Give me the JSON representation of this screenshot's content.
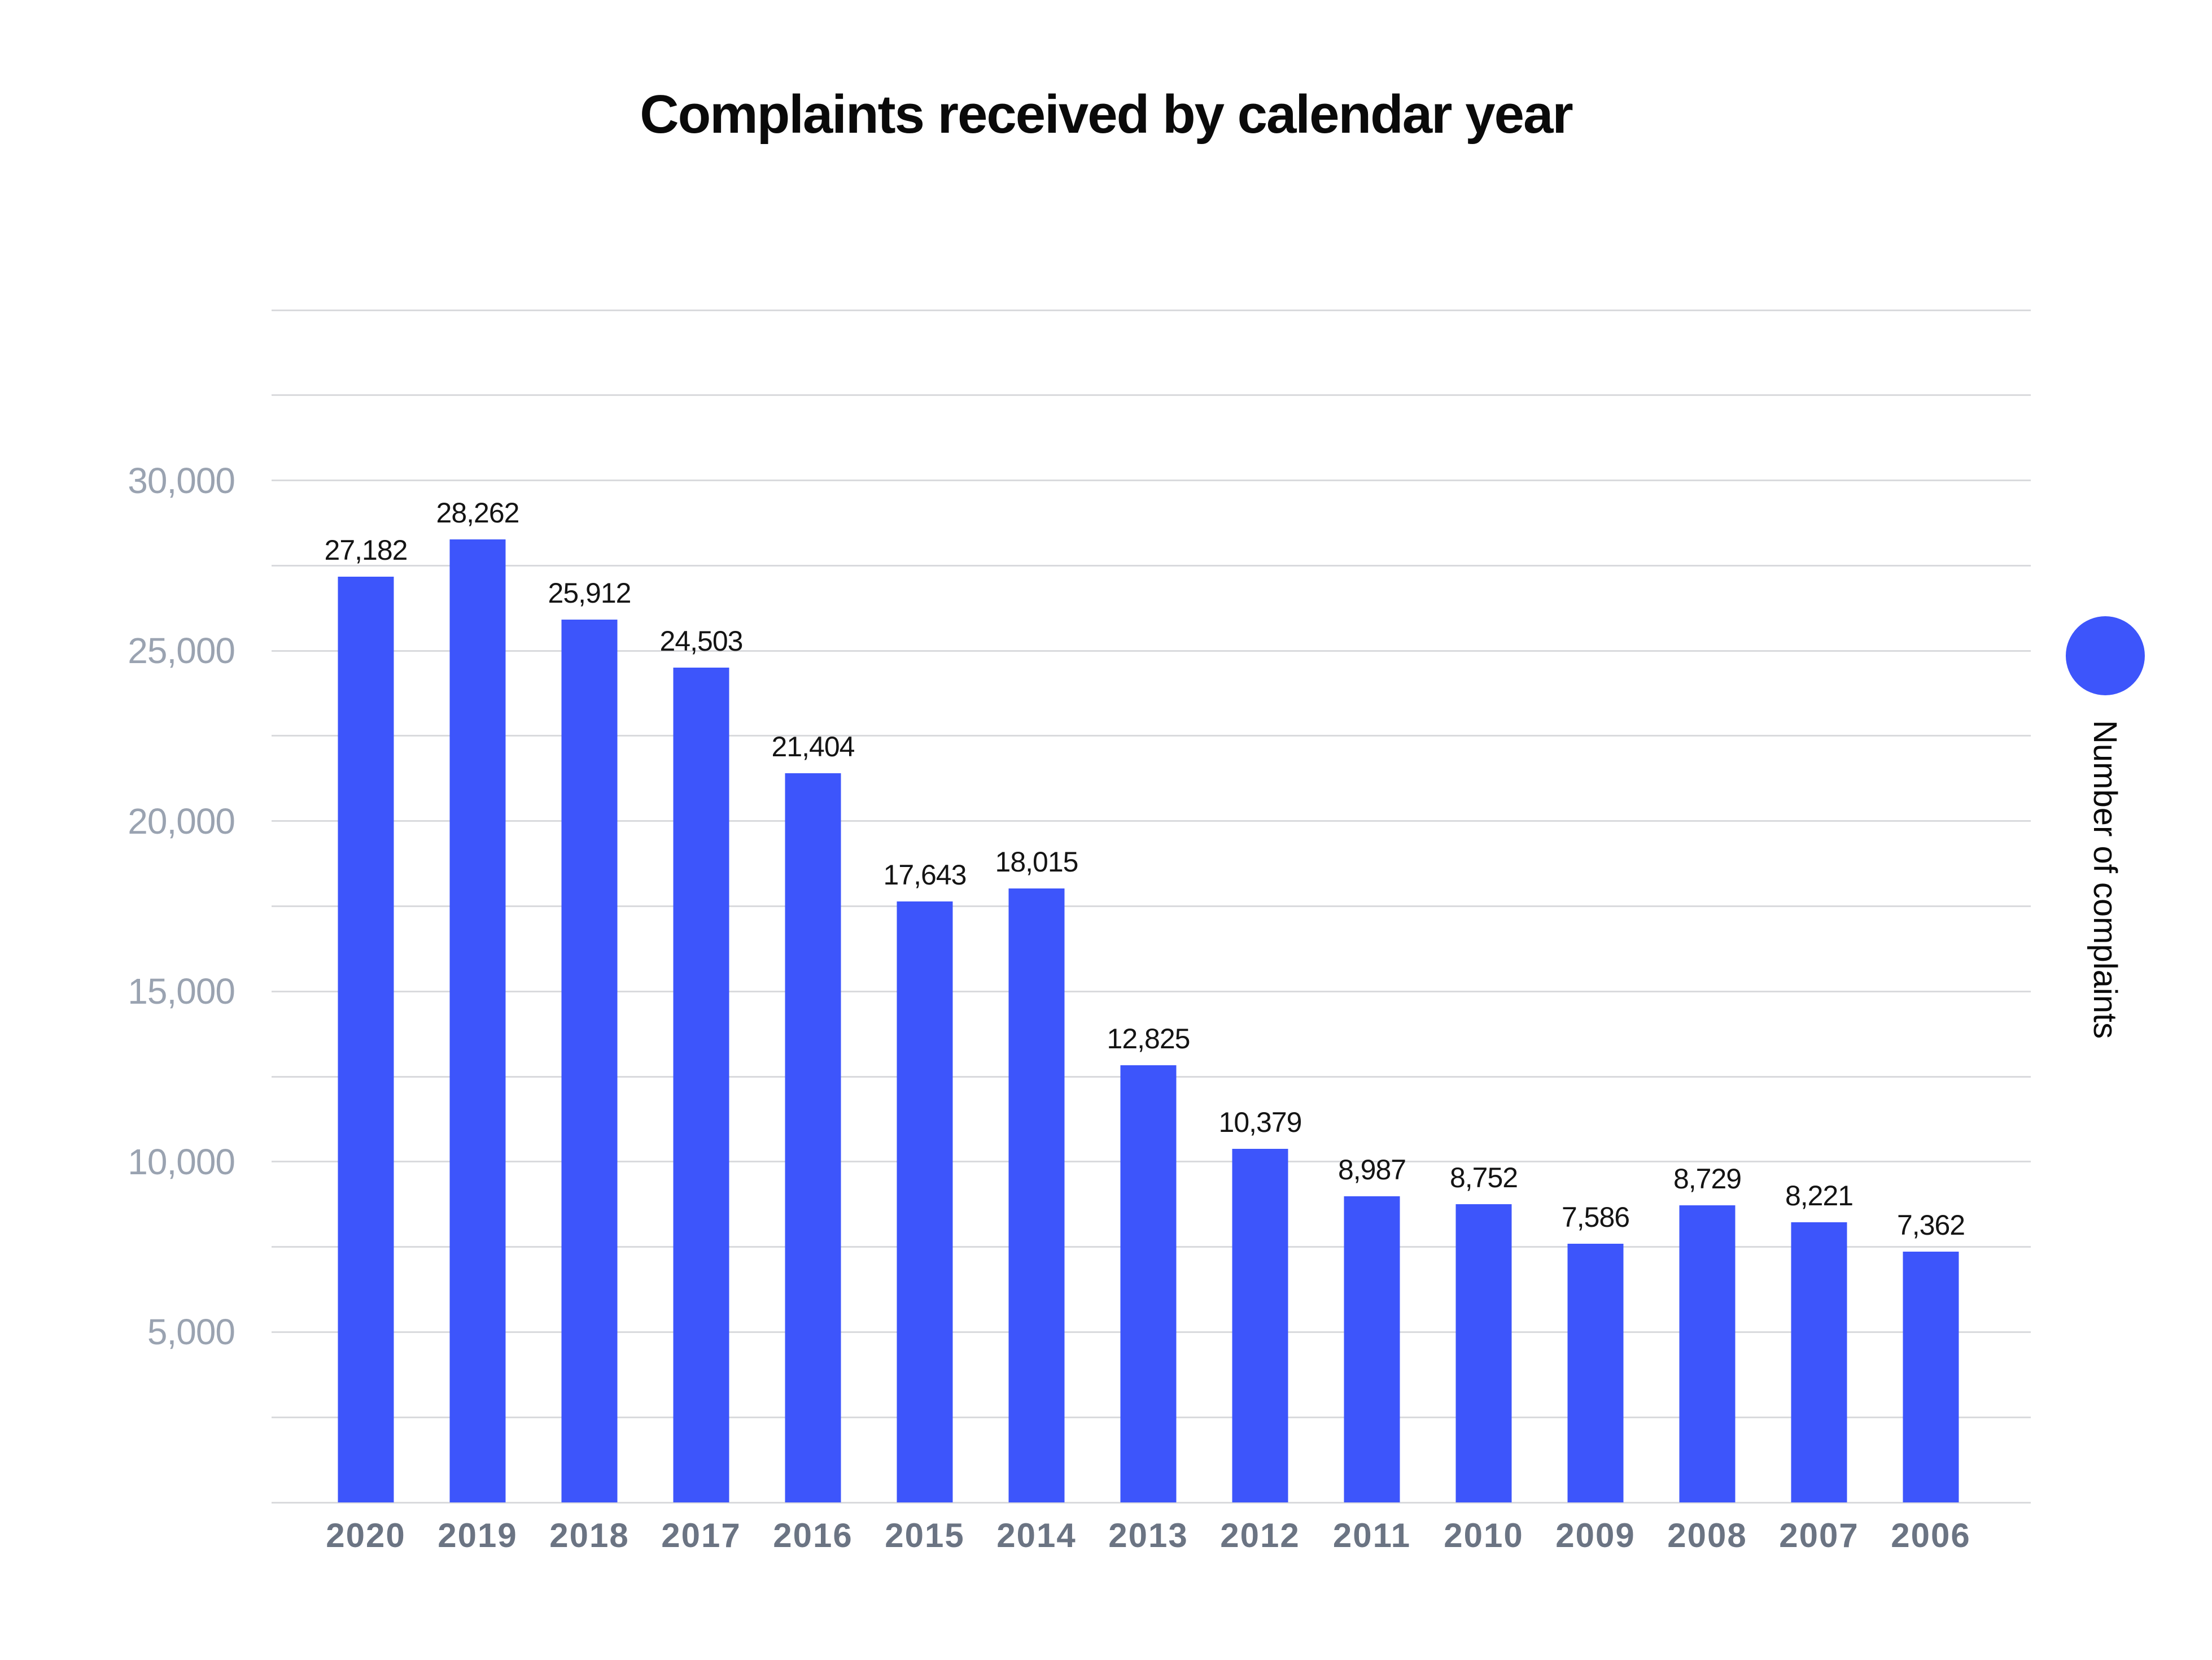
{
  "chart": {
    "title": "Complaints received by calendar year",
    "legend_label": "Number of complaints"
  },
  "chart_data": {
    "type": "bar",
    "title": "Complaints received by calendar year",
    "categories": [
      "2020",
      "2019",
      "2018",
      "2017",
      "2016",
      "2015",
      "2014",
      "2013",
      "2012",
      "2011",
      "2010",
      "2009",
      "2008",
      "2007",
      "2006"
    ],
    "values": [
      27182,
      28262,
      25912,
      24503,
      21404,
      17643,
      18015,
      12825,
      10379,
      8987,
      8752,
      7586,
      8729,
      8221,
      7362
    ],
    "value_labels": [
      "27,182",
      "28,262",
      "25,912",
      "24,503",
      "21,404",
      "17,643",
      "18,015",
      "12,825",
      "10,379",
      "8,987",
      "8,752",
      "7,586",
      "8,729",
      "8,221",
      "7,362"
    ],
    "series_name": "Number of complaints",
    "xlabel": "",
    "ylabel": "",
    "ylim": [
      0,
      35000
    ],
    "gridline_step": 2500,
    "ytick_values": [
      5000,
      10000,
      15000,
      20000,
      25000,
      30000
    ],
    "ytick_labels": [
      "5,000",
      "10,000",
      "15,000",
      "20,000",
      "25,000",
      "30,000"
    ],
    "grid": true,
    "legend_position": "right",
    "colors": {
      "bar": "#3D55FB",
      "value_label": "#141414",
      "y_tick_label": "#9AA3B1",
      "x_tick_label": "#6B7483",
      "gridline": "#D9DADD",
      "title": "#0A0A0A",
      "background": "#FFFFFF"
    }
  }
}
